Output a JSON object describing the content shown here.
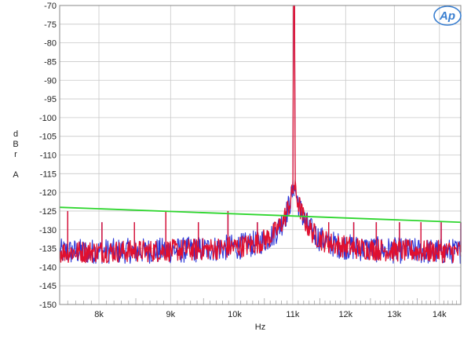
{
  "chart_data": {
    "type": "line",
    "title": "",
    "xlabel": "Hz",
    "ylabel_lines": [
      "d",
      "B",
      "r",
      "",
      "A"
    ],
    "xscale": "log",
    "xlim": [
      7500,
      14500
    ],
    "ylim": [
      -150,
      -70
    ],
    "x_ticks": [
      {
        "value": 8000,
        "label": "8k"
      },
      {
        "value": 9000,
        "label": "9k"
      },
      {
        "value": 10000,
        "label": "10k"
      },
      {
        "value": 11000,
        "label": "11k"
      },
      {
        "value": 12000,
        "label": "12k"
      },
      {
        "value": 13000,
        "label": "13k"
      },
      {
        "value": 14000,
        "label": "14k"
      }
    ],
    "y_ticks": [
      -70,
      -75,
      -80,
      -85,
      -90,
      -95,
      -100,
      -105,
      -110,
      -115,
      -120,
      -125,
      -130,
      -135,
      -140,
      -145,
      -150
    ],
    "grid": true,
    "legend": "none",
    "colors": {
      "blue": "#2a35d8",
      "red": "#e01030",
      "green": "#2ed62e",
      "grid": "#c8c8c8",
      "logo": "#3a7fd0"
    },
    "fundamental_hz": 11025,
    "noise_floor_db": -136,
    "series": [
      {
        "color": "blue",
        "peak_db": -70,
        "spurs": [
          {
            "x": 7600,
            "y": -125
          },
          {
            "x": 8040,
            "y": -128
          },
          {
            "x": 8480,
            "y": -128
          },
          {
            "x": 8930,
            "y": -125
          },
          {
            "x": 9420,
            "y": -128
          },
          {
            "x": 9890,
            "y": -125
          },
          {
            "x": 10380,
            "y": -128
          },
          {
            "x": 11670,
            "y": -128
          },
          {
            "x": 12160,
            "y": -128
          },
          {
            "x": 12620,
            "y": -128
          },
          {
            "x": 13110,
            "y": -128
          },
          {
            "x": 13580,
            "y": -128
          },
          {
            "x": 14040,
            "y": -128
          },
          {
            "x": 14500,
            "y": -128
          }
        ]
      },
      {
        "color": "red",
        "peak_db": -70,
        "spurs": [
          {
            "x": 7600,
            "y": -125
          },
          {
            "x": 8040,
            "y": -128
          },
          {
            "x": 8480,
            "y": -128
          },
          {
            "x": 8930,
            "y": -125
          },
          {
            "x": 9420,
            "y": -128
          },
          {
            "x": 9890,
            "y": -125
          },
          {
            "x": 10380,
            "y": -128
          },
          {
            "x": 11670,
            "y": -128
          },
          {
            "x": 12160,
            "y": -128
          },
          {
            "x": 12620,
            "y": -128
          },
          {
            "x": 13110,
            "y": -128
          },
          {
            "x": 13580,
            "y": -128
          },
          {
            "x": 14040,
            "y": -128
          },
          {
            "x": 14500,
            "y": -128
          }
        ]
      },
      {
        "color": "green",
        "points": [
          {
            "x": 7500,
            "y": -124
          },
          {
            "x": 14500,
            "y": -128
          }
        ]
      }
    ]
  },
  "logo": {
    "text": "Ap"
  }
}
